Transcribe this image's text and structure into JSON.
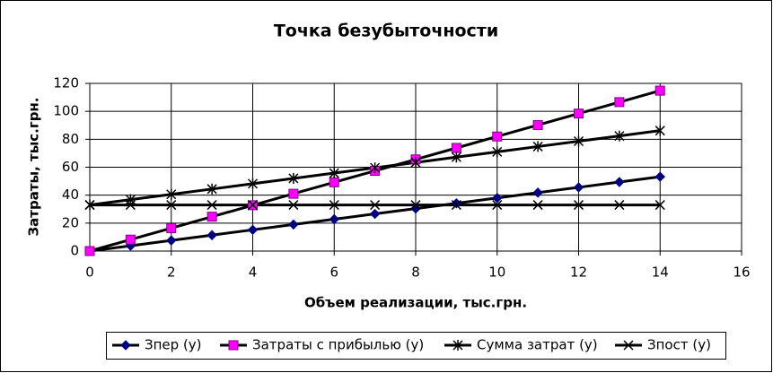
{
  "chart_data": {
    "type": "line",
    "title": "Точка безубыточности",
    "x_label": "Объем реализации, тыс.грн.",
    "y_label": "Затраты, тыс.грн.",
    "x": [
      0,
      1,
      2,
      3,
      4,
      5,
      6,
      7,
      8,
      9,
      10,
      11,
      12,
      13,
      14
    ],
    "series": [
      {
        "name": "Зпер (y)",
        "color": "#000080",
        "marker": "diamond",
        "values": [
          0,
          3.8,
          7.6,
          11.4,
          15.2,
          19,
          22.8,
          26.6,
          30.4,
          34.2,
          38,
          41.8,
          45.6,
          49.4,
          53.2
        ]
      },
      {
        "name": "Затраты с прибылью (y)",
        "color": "#ff00ff",
        "marker": "square",
        "values": [
          0,
          8.2,
          16.4,
          24.6,
          32.8,
          41,
          49.2,
          57.4,
          65.6,
          73.8,
          82,
          90.2,
          98.4,
          106.6,
          114.8
        ]
      },
      {
        "name": "Сумма затрат (y)",
        "color": "#000080",
        "marker": "star",
        "values": [
          33,
          36.8,
          40.6,
          44.4,
          48.2,
          52,
          55.8,
          59.6,
          63.4,
          67.2,
          71,
          74.8,
          78.6,
          82.4,
          86.2
        ]
      },
      {
        "name": "Зпост (y)",
        "color": "#000080",
        "marker": "x",
        "values": [
          33,
          33,
          33,
          33,
          33,
          33,
          33,
          33,
          33,
          33,
          33,
          33,
          33,
          33,
          33
        ]
      }
    ],
    "line_color": "#000000",
    "xlim": [
      0,
      16
    ],
    "xticks": [
      0,
      2,
      4,
      6,
      8,
      10,
      12,
      14,
      16
    ],
    "ylim": [
      0,
      120
    ],
    "yticks": [
      0,
      20,
      40,
      60,
      80,
      100,
      120
    ],
    "grid": true,
    "legend": "bottom"
  }
}
